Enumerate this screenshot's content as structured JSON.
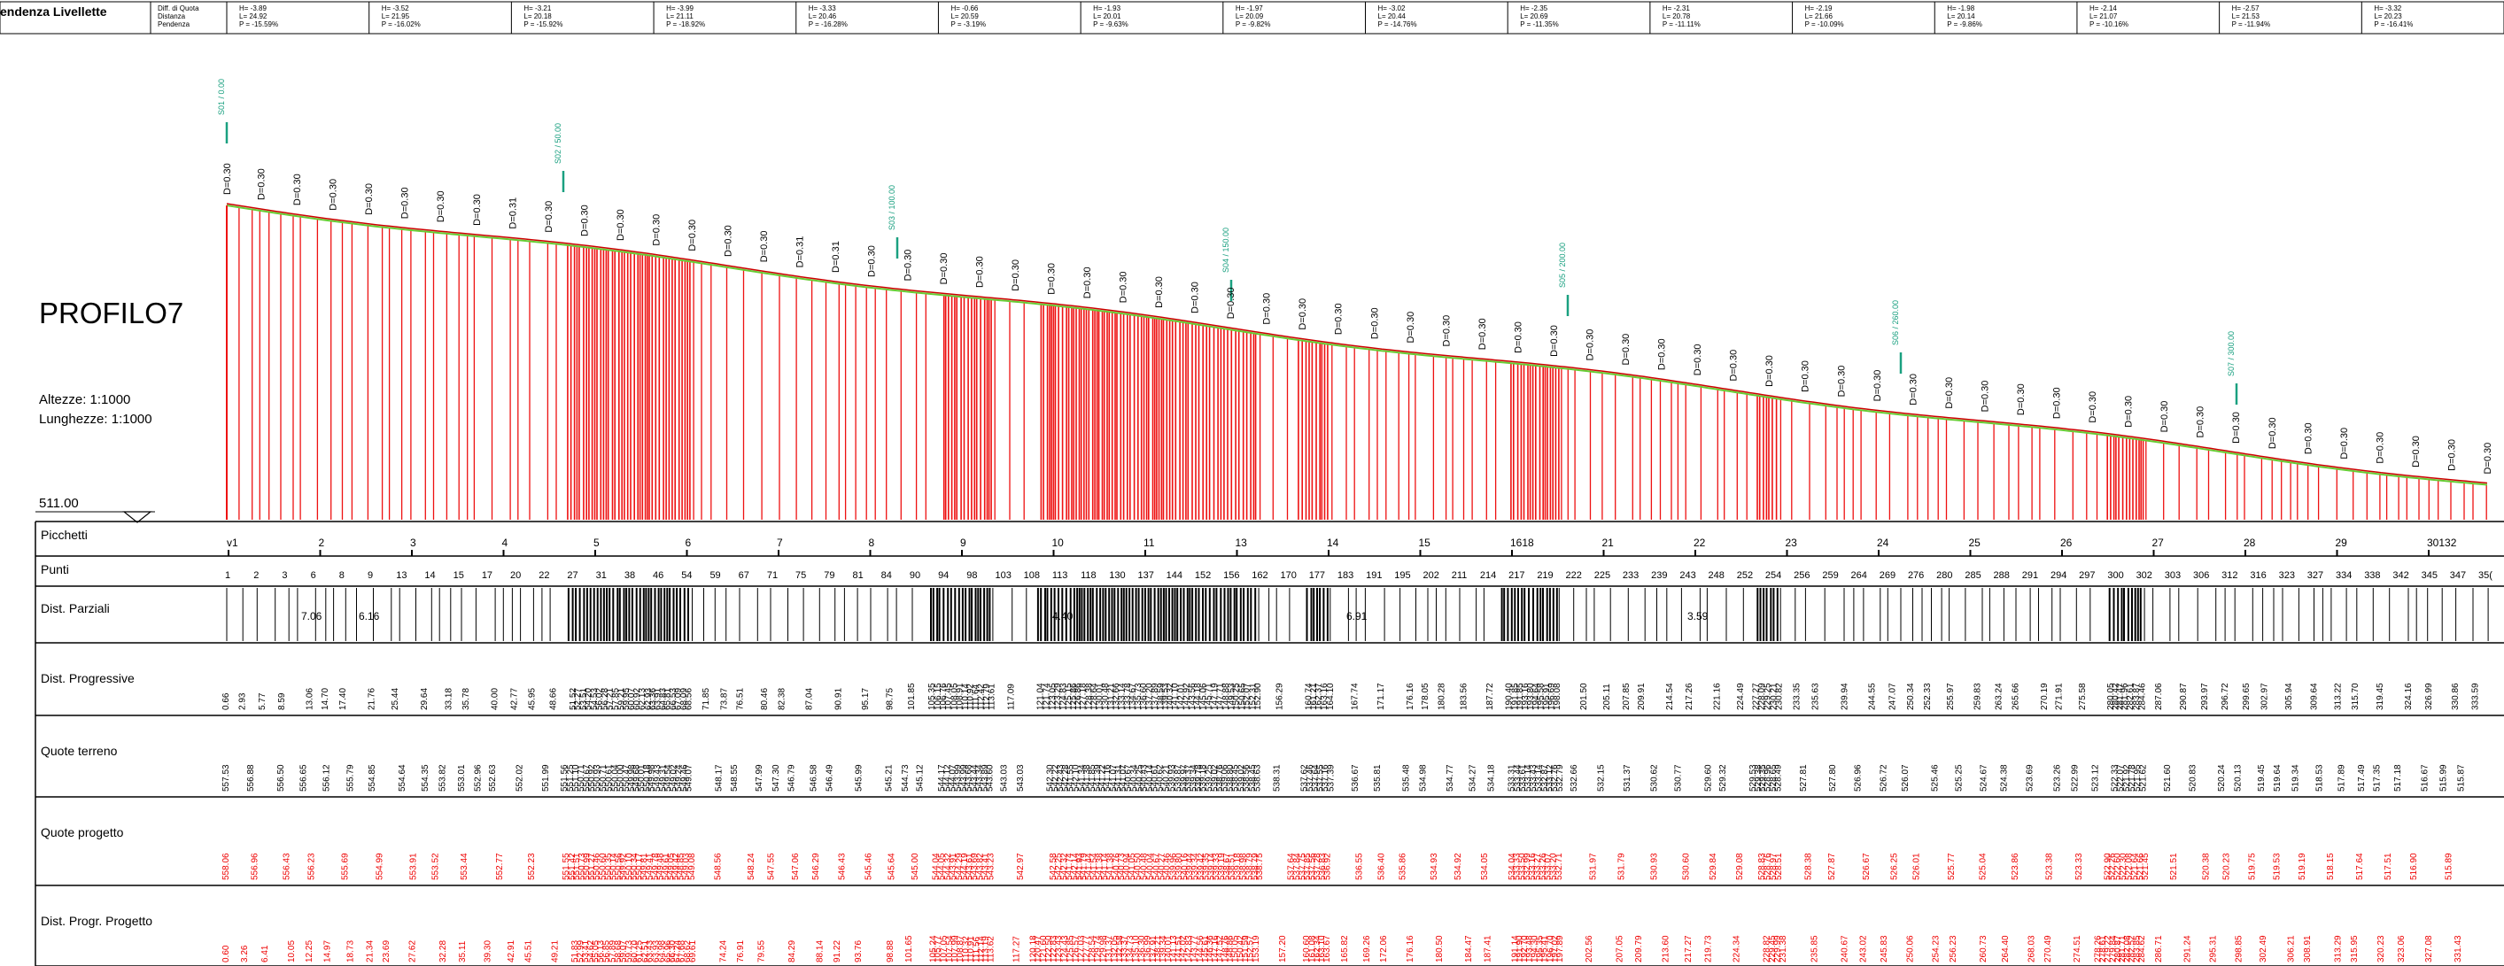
{
  "header": {
    "label": "endenza Livellette",
    "legend": [
      "Diff. di Quota",
      "Distanza",
      "Pendenza"
    ],
    "cells": [
      [
        "H= -3.89",
        "L= 24.92",
        "P = -15.59%"
      ],
      [
        "H= -3.52",
        "L= 21.95",
        "P = -16.02%"
      ],
      [
        "H= -3.21",
        "L= 20.18",
        "P = -15.92%"
      ],
      [
        "H= -3.99",
        "L= 21.11",
        "P = -18.92%"
      ],
      [
        "H= -3.33",
        "L= 20.46",
        "P = -16.28%"
      ],
      [
        "H= -0.66",
        "L= 20.59",
        "P = -3.19%"
      ],
      [
        "H= -1.93",
        "L= 20.01",
        "P = -9.63%"
      ],
      [
        "H= -1.97",
        "L= 20.09",
        "P = -9.82%"
      ],
      [
        "H= -3.02",
        "L= 20.44",
        "P = -14.76%"
      ],
      [
        "H= -2.35",
        "L= 20.69",
        "P = -11.35%"
      ],
      [
        "H= -2.31",
        "L= 20.78",
        "P = -11.11%"
      ],
      [
        "H= -2.19",
        "L= 21.66",
        "P = -10.09%"
      ],
      [
        "H= -1.98",
        "L= 20.14",
        "P = -9.86%"
      ],
      [
        "H= -2.14",
        "L= 21.07",
        "P = -10.16%"
      ],
      [
        "H= -2.57",
        "L= 21.53",
        "P = -11.94%"
      ],
      [
        "H= -3.32",
        "L= 20.23",
        "P = -16.41%"
      ]
    ]
  },
  "profile": {
    "title": "PROFILO7",
    "scale_heights": "Altezze:  1:1000",
    "scale_lengths": "Lunghezze: 1:1000",
    "datum": "511.00",
    "depth_label": "D=0.30",
    "depth_label_alt": "D=0.31"
  },
  "stations": [
    {
      "label": "S01 / 0.00"
    },
    {
      "label": "S02 / 50.00"
    },
    {
      "label": "S03 / 100.00"
    },
    {
      "label": "S04 / 150.00"
    },
    {
      "label": "S05 / 200.00"
    },
    {
      "label": "S06 / 260.00"
    },
    {
      "label": "S07 / 300.00"
    }
  ],
  "rows": {
    "picchetti": "Picchetti",
    "punti": "Punti",
    "dist_parziali": "Dist. Parziali",
    "dist_progressive": "Dist. Progressive",
    "quote_terreno": "Quote terreno",
    "quote_progetto": "Quote progetto",
    "dist_progr_progetto": "Dist. Progr. Progetto"
  },
  "picchetti_labels": [
    "v1",
    "2",
    "3",
    "4",
    "5",
    "6",
    "7",
    "8",
    "9",
    "10",
    "11",
    "13",
    "14",
    "15",
    "1618",
    "21",
    "22",
    "23",
    "24",
    "25",
    "26",
    "27",
    "28",
    "29",
    "30132"
  ],
  "punti_labels": [
    "1",
    "2",
    "3",
    "6",
    "8",
    "9",
    "13",
    "14",
    "15",
    "17",
    "20",
    "22",
    "27",
    "31",
    "38",
    "46",
    "54",
    "59",
    "67",
    "71",
    "75",
    "79",
    "81",
    "84",
    "90",
    "94",
    "98",
    "103",
    "108",
    "113",
    "118",
    "130",
    "137",
    "144",
    "152",
    "156",
    "162",
    "170",
    "177",
    "183",
    "191",
    "195",
    "202",
    "211",
    "214",
    "217",
    "219",
    "222",
    "225",
    "233",
    "239",
    "243",
    "248",
    "252",
    "254",
    "256",
    "259",
    "264",
    "269",
    "276",
    "280",
    "285",
    "288",
    "291",
    "294",
    "297",
    "300",
    "302",
    "303",
    "306",
    "312",
    "316",
    "323",
    "327",
    "334",
    "338",
    "342",
    "345",
    "347",
    "35("
  ],
  "dist_parziali_big": [
    "7.06",
    "6.16",
    "6.91",
    "4.40",
    "3.59"
  ],
  "terrain_start": 557.75,
  "terrain_end": 515.42,
  "total_distance": 335.5,
  "depth_count": 64,
  "colors": {
    "ground": "#e11",
    "terrain_line": "#c00",
    "design_line": "#6c3",
    "station_mark": "#1aa080",
    "project_text": "#e00"
  }
}
